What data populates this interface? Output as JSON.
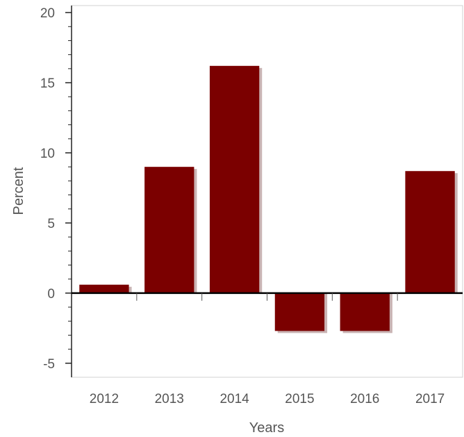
{
  "chart_data": {
    "type": "bar",
    "categories": [
      "2012",
      "2013",
      "2014",
      "2015",
      "2016",
      "2017"
    ],
    "values": [
      0.6,
      9.0,
      16.2,
      -2.7,
      -2.7,
      8.7
    ],
    "xlabel": "Years",
    "ylabel": "Percent",
    "ylim": [
      -6,
      20.5
    ],
    "yticks": [
      -5,
      0,
      5,
      10,
      15,
      20
    ],
    "ytick_labels": [
      "-5",
      "0",
      "5",
      "10",
      "15",
      "20"
    ],
    "grid": false,
    "colors": {
      "bar": "#7b0000",
      "shadow": "#c9b4b4",
      "axis": "#222222",
      "frame": "#d0d0d0",
      "zero_line": "#000000"
    }
  }
}
